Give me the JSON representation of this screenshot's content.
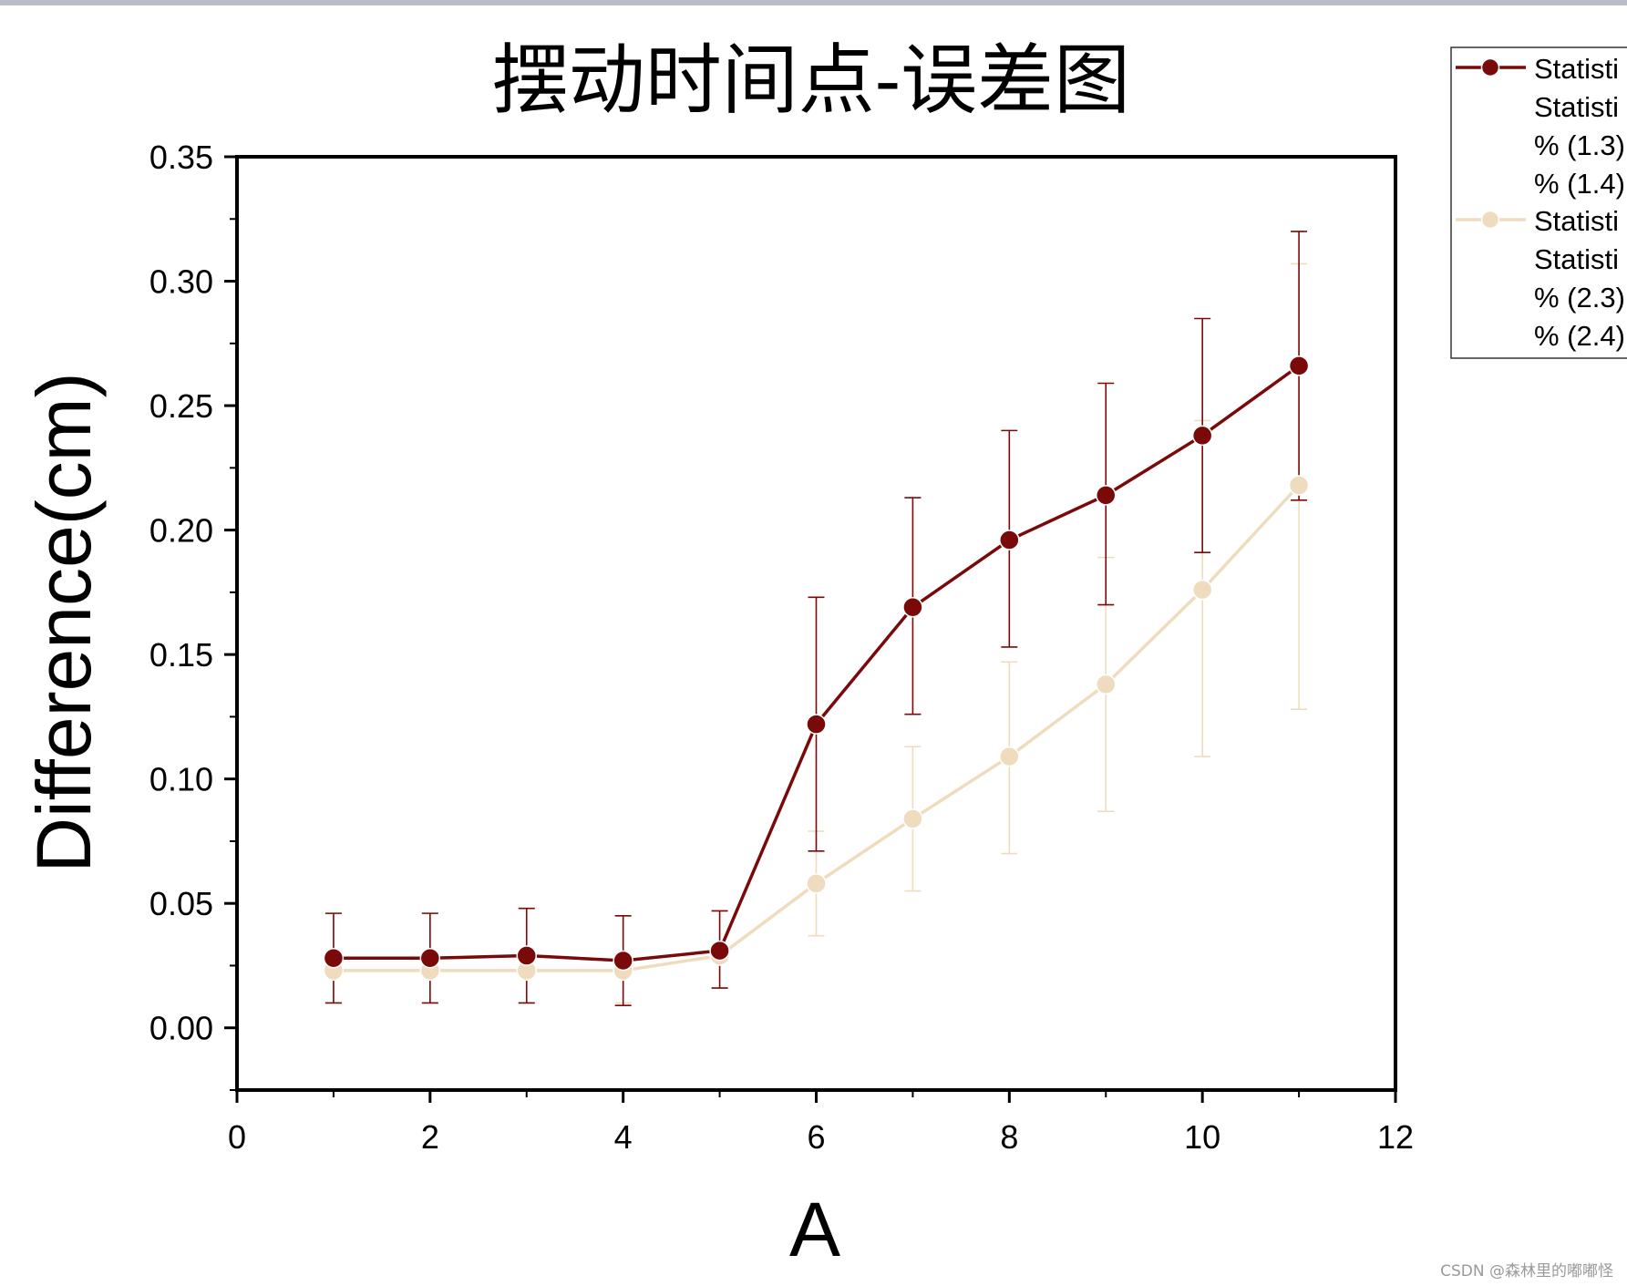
{
  "chart_data": {
    "type": "line",
    "title": "摆动时间点-误差图",
    "xlabel": "A",
    "ylabel": "Difference(cm)",
    "xlim": [
      0,
      12
    ],
    "ylim": [
      -0.025,
      0.35
    ],
    "x_ticks": [
      0,
      2,
      4,
      6,
      8,
      10,
      12
    ],
    "x_tick_labels": [
      "0",
      "2",
      "4",
      "6",
      "8",
      "10",
      "12"
    ],
    "y_ticks": [
      0.0,
      0.05,
      0.1,
      0.15,
      0.2,
      0.25,
      0.3,
      0.35
    ],
    "y_tick_labels": [
      "0.00",
      "0.05",
      "0.10",
      "0.15",
      "0.20",
      "0.25",
      "0.30",
      "0.35"
    ],
    "grid": false,
    "legend_position": "top-right, outside plot (clipped)",
    "x": [
      1,
      2,
      3,
      4,
      5,
      6,
      7,
      8,
      9,
      10,
      11
    ],
    "series": [
      {
        "legend_lines": [
          "Statisti",
          "Statisti",
          "% (1.3)",
          "% (1.4)"
        ],
        "color": "#7a0a0a",
        "values": [
          0.028,
          0.028,
          0.029,
          0.027,
          0.031,
          0.122,
          0.169,
          0.196,
          0.214,
          0.238,
          0.266
        ],
        "err_low": [
          0.01,
          0.01,
          0.01,
          0.009,
          0.016,
          0.071,
          0.126,
          0.153,
          0.17,
          0.191,
          0.212
        ],
        "err_high": [
          0.046,
          0.046,
          0.048,
          0.045,
          0.047,
          0.173,
          0.213,
          0.24,
          0.259,
          0.285,
          0.32
        ]
      },
      {
        "legend_lines": [
          "Statisti",
          "Statisti",
          "% (2.3)",
          "% (2.4)"
        ],
        "color": "#efdcbf",
        "values": [
          0.023,
          0.023,
          0.023,
          0.023,
          0.029,
          0.058,
          0.084,
          0.109,
          0.138,
          0.176,
          0.218
        ],
        "err_low": [
          0.01,
          0.01,
          0.01,
          0.01,
          0.016,
          0.037,
          0.055,
          0.07,
          0.087,
          0.109,
          0.128
        ],
        "err_high": [
          0.046,
          0.046,
          0.048,
          0.045,
          0.047,
          0.079,
          0.113,
          0.147,
          0.189,
          0.244,
          0.307
        ]
      }
    ]
  },
  "watermark": "CSDN @森林里的嘟嘟怪"
}
